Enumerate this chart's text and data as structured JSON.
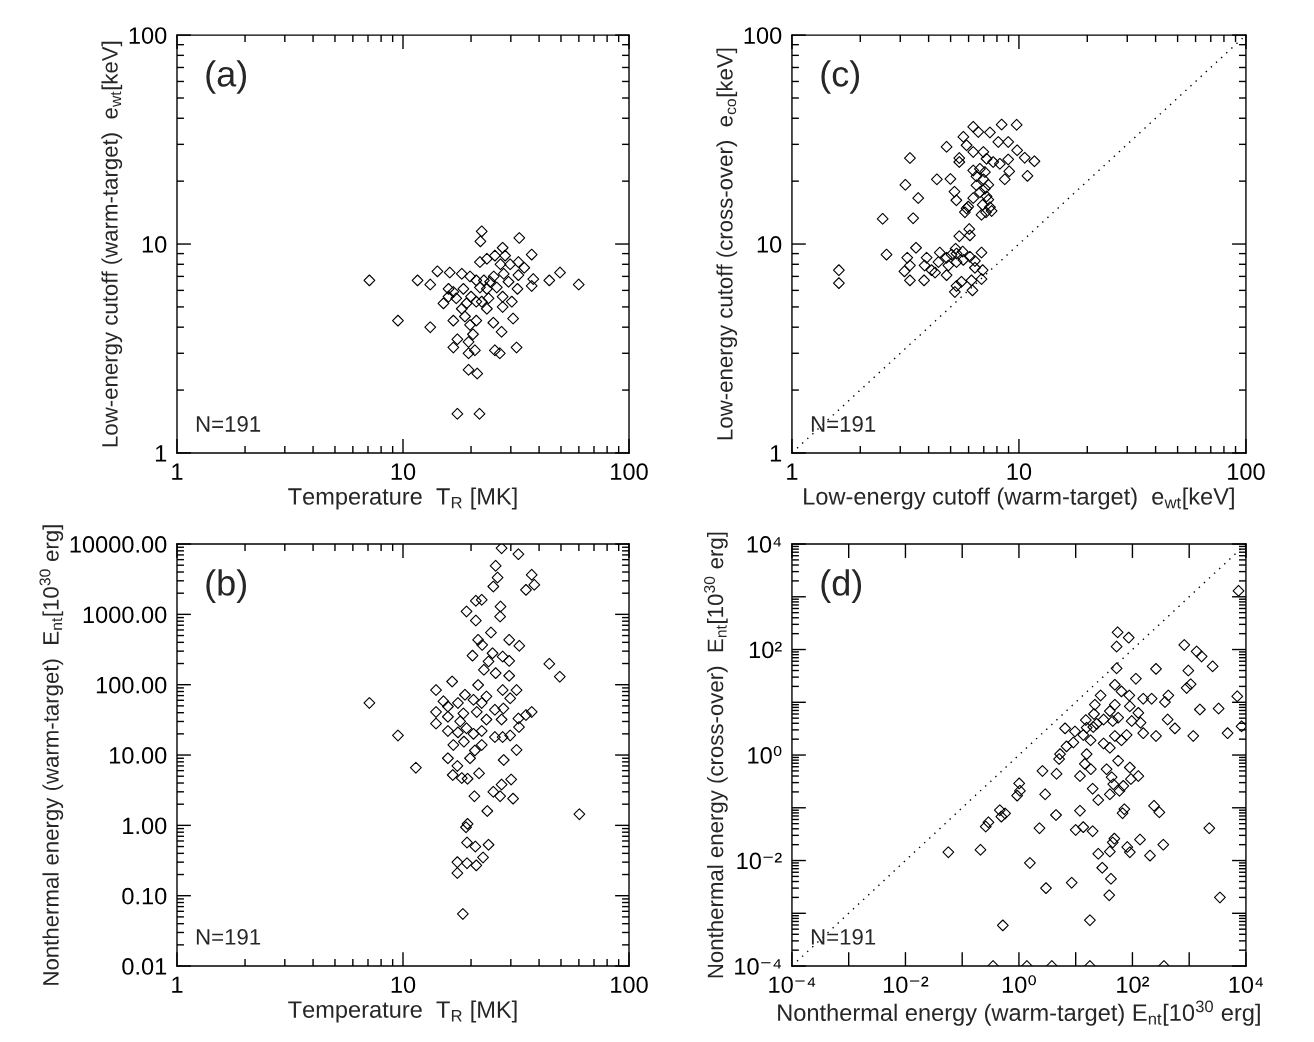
{
  "chart_data": [
    {
      "type": "scatter",
      "xlabel": "Temperature  T$_{R}$ [MK]",
      "ylabel": "Low-energy cutoff (warm-target)  e$_{wt}$[keV]",
      "annotations": [
        "(a)",
        "N=191"
      ],
      "log": "xy",
      "marker": "diamond",
      "xlim": [
        1,
        100
      ],
      "ylim": [
        1,
        100
      ],
      "xticks": [
        1,
        10,
        100
      ],
      "yticks": [
        1,
        10,
        100
      ],
      "series": [
        {
          "color": "#000000",
          "x": [
            7.1,
            9.5,
            11.6,
            13.2,
            13.2,
            14.2,
            16.1,
            15.9,
            15.9,
            15.1,
            16.7,
            17.4,
            16.7,
            19.5,
            19.5,
            20.8,
            19.5,
            21.3,
            17.4,
            21.8,
            22.3,
            22.0,
            32.7,
            37.1,
            27.6,
            25.5,
            21.9,
            32.4,
            34.4,
            37.7,
            44.4,
            49.5,
            59.9,
            37.1,
            32.4,
            32.1,
            30.3,
            30.7,
            31.8,
            27.3,
            25.1,
            25.5,
            26.8,
            27.6,
            27.6,
            23.5,
            21.1,
            20.4,
            21.1,
            21.9,
            19.8,
            18.2,
            18.5,
            19.1,
            20.0,
            22.8,
            24.3,
            26.0,
            25.2,
            27.9,
            29.3,
            29.8,
            27.0,
            23.9,
            22.3,
            18.2,
            18.8,
            19.8,
            16.7,
            17.2,
            23.5,
            28.3,
            23.5,
            21.1
          ],
          "values": [
            6.7,
            4.3,
            6.7,
            6.4,
            4.0,
            7.4,
            7.3,
            6.1,
            5.6,
            5.2,
            4.3,
            3.5,
            3.2,
            3.4,
            3.0,
            3.1,
            2.5,
            2.4,
            1.54,
            1.54,
            11.5,
            10.3,
            10.7,
            8.9,
            9.6,
            8.8,
            8.2,
            8.2,
            7.7,
            6.8,
            6.7,
            7.3,
            6.4,
            6.3,
            7.1,
            6.1,
            5.3,
            4.4,
            3.2,
            3.8,
            4.2,
            3.1,
            3.0,
            5.0,
            5.6,
            4.9,
            4.3,
            3.7,
            6.7,
            6.2,
            7.0,
            7.2,
            6.1,
            5.2,
            5.6,
            6.7,
            6.6,
            6.2,
            7.0,
            7.2,
            6.6,
            8.0,
            8.0,
            5.5,
            5.3,
            4.9,
            4.5,
            4.1,
            5.9,
            5.5,
            8.5,
            8.8,
            6.1,
            5.3
          ]
        }
      ]
    },
    {
      "type": "scatter",
      "xlabel": "Low-energy cutoff (warm-target)  e$_{wt}$[keV]",
      "ylabel": "Low-energy cutoff (cross-over)  e$_{co}$[keV]",
      "annotations": [
        "(c)",
        "N=191"
      ],
      "log": "xy",
      "marker": "diamond",
      "xlim": [
        1,
        100
      ],
      "ylim": [
        1,
        100
      ],
      "xticks": [
        1,
        10,
        100
      ],
      "yticks": [
        1,
        10,
        100
      ],
      "series": [
        {
          "color": "#000000",
          "x": [
            1.61,
            1.61,
            2.51,
            2.61,
            3.31,
            3.16,
            3.6,
            3.42,
            3.22,
            3.31,
            3.13,
            3.31,
            3.52,
            3.82,
            3.92,
            4.27,
            4.35,
            4.8,
            4.99,
            5.2,
            5.3,
            5.46,
            5.46,
            5.69,
            6.29,
            6.62,
            7.45,
            8.39,
            9.77,
            8.97,
            8.11,
            5.88,
            6.29,
            6.97,
            7.2,
            7.7,
            9.82,
            10.6,
            11.7,
            8.97,
            8.24,
            9.06,
            10.9,
            8.66,
            6.29,
            6.73,
            7.08,
            6.5,
            6.97,
            6.5,
            7.08,
            7.33,
            6.73,
            7.2,
            6.29,
            7.33,
            6.92,
            7.45,
            6.84,
            7.58,
            7.16,
            5.98,
            5.78,
            5.88,
            6.04,
            6.08,
            5.46,
            5.26,
            5.65,
            5.31,
            5.05,
            4.8,
            4.48,
            4.42,
            4.89,
            5.31,
            5.69,
            6.08,
            6.4,
            6.84,
            6.4,
            6.84,
            6.92,
            6.18,
            5.58,
            5.31,
            5.22,
            4.8,
            4.12,
            3.84,
            6.24
          ],
          "values": [
            7.5,
            6.5,
            13.2,
            8.9,
            25.8,
            19.2,
            16.6,
            13.3,
            8.6,
            7.9,
            7.4,
            6.7,
            9.6,
            6.7,
            8.6,
            7.3,
            20.4,
            29.2,
            20.5,
            17.8,
            16.2,
            25.8,
            24.7,
            32.6,
            36.4,
            34.4,
            34.2,
            37.3,
            37.2,
            30.8,
            30.8,
            29.7,
            27.6,
            27.6,
            25.6,
            24.7,
            28.1,
            25.9,
            24.9,
            25.4,
            24.2,
            22.3,
            21.2,
            20.4,
            22.5,
            22.9,
            22.1,
            21.1,
            20.4,
            19.1,
            18.4,
            19.2,
            17.7,
            16.9,
            16.6,
            16.3,
            15.4,
            15.0,
            13.8,
            14.4,
            14.2,
            15.1,
            14.2,
            14.8,
            11.8,
            11.0,
            10.9,
            9.5,
            9.2,
            9.0,
            8.9,
            8.6,
            9.1,
            8.2,
            7.9,
            8.2,
            8.4,
            8.7,
            8.3,
            9.1,
            7.7,
            6.8,
            7.5,
            6.7,
            6.6,
            6.3,
            5.9,
            7.1,
            7.5,
            7.9,
            6.0
          ]
        },
        {
          "type": "line",
          "color": "#000000",
          "line_style": "dotted",
          "marker": "none",
          "x": [
            1,
            100
          ],
          "values": [
            1,
            100
          ]
        }
      ]
    },
    {
      "type": "scatter",
      "xlabel": "Temperature  T$_{R}$ [MK]",
      "ylabel": "Nonthermal energy (warm-target)  E$_{nt}$[10$^{30}$ erg]",
      "annotations": [
        "(b)",
        "N=191"
      ],
      "log": "xy",
      "marker": "diamond",
      "xlim": [
        1,
        100
      ],
      "ylim": [
        0.01,
        10000
      ],
      "xticks": [
        1,
        10,
        100
      ],
      "yticks": [
        0.01,
        {
          "value": 0.1,
          "label": "0.10"
        },
        {
          "value": 1,
          "label": "1.00"
        },
        {
          "value": 10,
          "label": "10.00"
        },
        {
          "value": 100,
          "label": "100.00"
        },
        {
          "value": 1000,
          "label": "1000.00"
        },
        {
          "value": 10000,
          "label": "10000.00"
        }
      ],
      "series": [
        {
          "color": "#000000",
          "x": [
            27.3,
            32.4,
            25.7,
            26.2,
            37.1,
            38.1,
            35.0,
            25.1,
            21.0,
            22.3,
            19.1,
            21.0,
            27.0,
            26.9,
            24.5,
            21.5,
            22.4,
            29.5,
            32.7,
            20.3,
            24.9,
            27.6,
            29.5,
            44.4,
            49.4,
            23.9,
            22.8,
            25.7,
            29.5,
            16.5,
            14.0,
            7.1,
            21.5,
            27.6,
            31.8,
            29.8,
            18.8,
            15.1,
            15.8,
            14.0,
            17.5,
            20.5,
            22.3,
            23.4,
            25.5,
            27.8,
            21.2,
            18.5,
            15.8,
            17.9,
            23.4,
            27.3,
            14.0,
            15.8,
            19.1,
            20.5,
            22.3,
            17.5,
            25.5,
            29.8,
            32.4,
            35.0,
            37.1,
            32.6,
            27.6,
            18.6,
            16.7,
            22.3,
            20.8,
            15.8,
            19.8,
            31.8,
            9.5,
            11.4,
            17.4,
            27.9,
            16.6,
            18.2,
            19.3,
            21.7,
            30.1,
            27.3,
            25.1,
            26.9,
            20.7,
            30.7,
            23.6,
            60.3,
            19.3,
            19.0,
            19.2,
            20.9,
            23.9,
            22.6,
            17.4,
            19.2,
            21.1,
            17.4,
            18.4
          ],
          "values": [
            8730,
            7180,
            4900,
            3340,
            3650,
            2630,
            2230,
            2490,
            1560,
            1610,
            1100,
            817,
            1290,
            931,
            551,
            434,
            368,
            434,
            357,
            259,
            280,
            251,
            218,
            198,
            130,
            214,
            163,
            146,
            134,
            111,
            84,
            55,
            99,
            84,
            84,
            64,
            72,
            58,
            49,
            41,
            55,
            61,
            55,
            68,
            44,
            46,
            41,
            39,
            35,
            30,
            32,
            32,
            28,
            22,
            24,
            20,
            22,
            21,
            18,
            19,
            33,
            37,
            41,
            25,
            18,
            15.5,
            13.9,
            13.9,
            11.6,
            9.0,
            9.0,
            11.8,
            19,
            6.6,
            7.0,
            8.5,
            5.2,
            4.7,
            4.6,
            5.5,
            4.5,
            3.8,
            3.0,
            2.6,
            2.6,
            2.4,
            1.6,
            1.44,
            1.05,
            0.94,
            0.57,
            0.5,
            0.53,
            0.35,
            0.3,
            0.29,
            0.27,
            0.21,
            0.055
          ]
        }
      ]
    },
    {
      "type": "scatter",
      "xlabel": "Nonthermal energy (warm-target) E$_{nt}$[10$^{30}$ erg]",
      "ylabel": "Nonthermal energy (cross-over)  E$_{nt}$[10$^{30}$ erg]",
      "annotations": [
        "(d)",
        "N=191"
      ],
      "log": "xy",
      "marker": "diamond",
      "xlim": [
        0.0001,
        10000
      ],
      "ylim": [
        0.0001,
        10000
      ],
      "xticks": [
        {
          "value": 0.0001,
          "label": "10⁻⁴"
        },
        {
          "value": 0.001,
          "label": null
        },
        {
          "value": 0.01,
          "label": "10⁻²"
        },
        {
          "value": 0.1,
          "label": null
        },
        {
          "value": 1,
          "label": "10⁰"
        },
        {
          "value": 10,
          "label": null
        },
        {
          "value": 100,
          "label": "10²"
        },
        {
          "value": 1000,
          "label": null
        },
        {
          "value": 10000,
          "label": "10⁴"
        }
      ],
      "yticks": [
        {
          "value": 0.0001,
          "label": "10⁻⁴"
        },
        {
          "value": 0.001,
          "label": null
        },
        {
          "value": 0.01,
          "label": "10⁻²"
        },
        {
          "value": 0.1,
          "label": null
        },
        {
          "value": 1,
          "label": "10⁰"
        },
        {
          "value": 10,
          "label": null
        },
        {
          "value": 100,
          "label": "10²"
        },
        {
          "value": 1000,
          "label": null
        },
        {
          "value": 10000,
          "label": "10⁴"
        }
      ],
      "series": [
        {
          "color": "#000000",
          "x": [
            54.8,
            86,
            52.6,
            819,
            1353,
            1656,
            2590,
            52.6,
            260,
            966,
            902,
            1061,
            7030,
            8380,
            4750,
            3300,
            1545,
            1180,
            561,
            417,
            374,
            429,
            218,
            155,
            115,
            88,
            90,
            127,
            139,
            155,
            260,
            97,
            79,
            64,
            49,
            56,
            45,
            31,
            40,
            49,
            64,
            49,
            27.5,
            21.8,
            21,
            15.1,
            23.4,
            20.4,
            15.6,
            9.7,
            6.5,
            13.6,
            18.3,
            31,
            40,
            6.9,
            9.1,
            5.3,
            5.1,
            15.6,
            14.5,
            18.5,
            11.9,
            35,
            43,
            46,
            56,
            90,
            127,
            94,
            69,
            59,
            40,
            25,
            19.9,
            4.6,
            2.6,
            2.9,
            1.01,
            0.93,
            1.04,
            0.46,
            0.57,
            0.49,
            0.29,
            0.26,
            4.5,
            2.3,
            11.9,
            10,
            13.6,
            19.9,
            240,
            298,
            72,
            67,
            48,
            45,
            40,
            25,
            90,
            81,
            136,
            204,
            350,
            2260,
            29.4,
            41.8,
            39,
            8.5,
            3.0,
            1.56,
            0.21,
            0.057,
            3480,
            17.8,
            0.52,
            0.35,
            1.38,
            3.8,
            17.8,
            359,
            7400
          ],
          "values": [
            212,
            168,
            114,
            122,
            92,
            74,
            48,
            44,
            43,
            40,
            18.7,
            22,
            13,
            3.5,
            2.6,
            7.6,
            7.3,
            2.3,
            3.2,
            4.7,
            10.1,
            13.5,
            11.7,
            11.7,
            28,
            13.5,
            8.4,
            6.3,
            4.1,
            2.6,
            2.3,
            4.4,
            2.4,
            1.9,
            2.3,
            5.1,
            4.4,
            4.7,
            6.8,
            9.0,
            16.1,
            21.5,
            13.5,
            9.0,
            6.0,
            4.6,
            3.9,
            3.4,
            3.3,
            2.8,
            3.2,
            2.4,
            1.9,
            1.66,
            1.37,
            1.46,
            1.73,
            1.04,
            0.84,
            1.04,
            0.68,
            0.54,
            0.4,
            0.54,
            0.38,
            0.28,
            0.78,
            0.58,
            0.4,
            0.35,
            0.26,
            0.21,
            0.18,
            0.14,
            0.23,
            0.44,
            0.5,
            0.18,
            0.29,
            0.17,
            0.21,
            0.09,
            0.078,
            0.068,
            0.053,
            0.044,
            0.073,
            0.041,
            0.088,
            0.038,
            0.043,
            0.036,
            0.109,
            0.082,
            0.094,
            0.079,
            0.026,
            0.022,
            0.0148,
            0.0134,
            0.0144,
            0.018,
            0.025,
            0.0124,
            0.02,
            0.041,
            0.0073,
            0.0045,
            0.0022,
            0.0038,
            0.003,
            0.009,
            0.016,
            0.0144,
            0.002,
            0.00074,
            0.00059,
            0.0001,
            0.0001,
            0.0001,
            0.0001,
            0.0001,
            1300
          ]
        },
        {
          "type": "line",
          "color": "#000000",
          "line_style": "dotted",
          "marker": "none",
          "x": [
            0.0001,
            10000
          ],
          "values": [
            0.0001,
            10000
          ]
        }
      ]
    }
  ]
}
